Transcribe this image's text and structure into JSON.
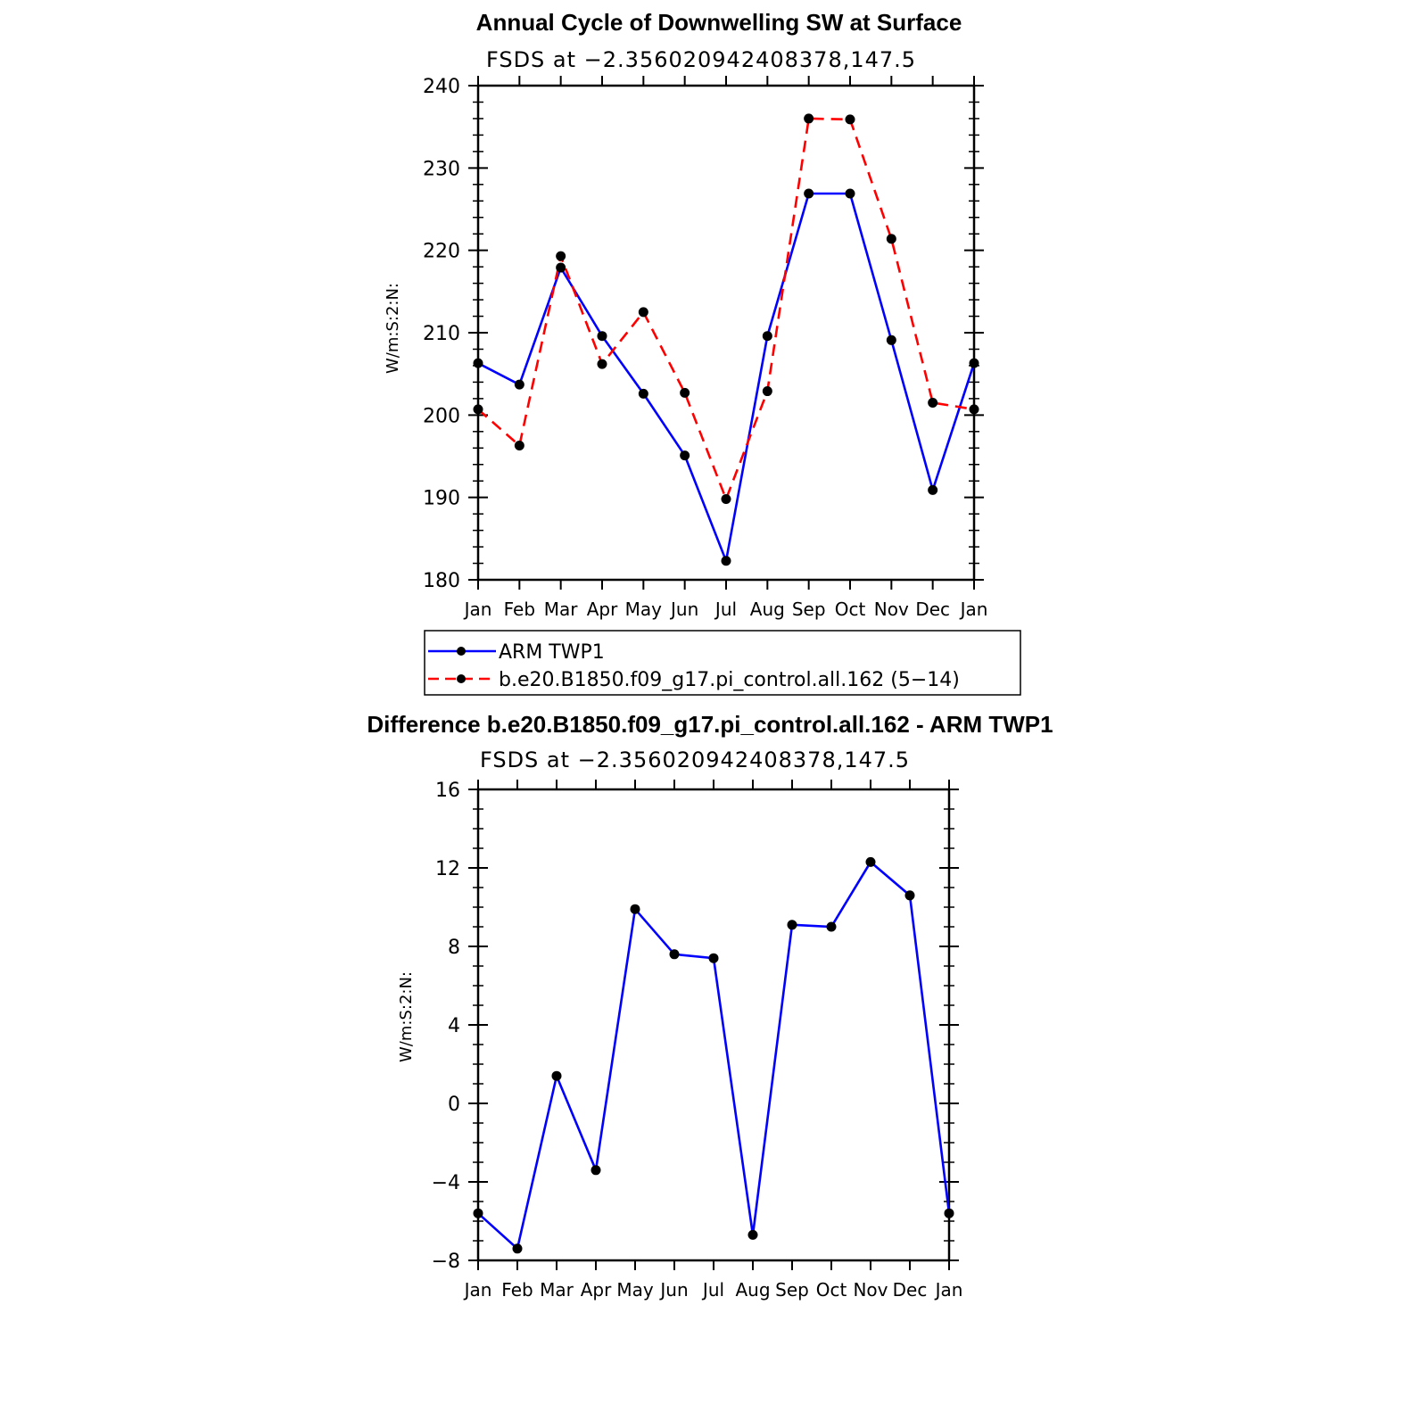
{
  "chart_data": [
    {
      "type": "line",
      "title": "Annual Cycle of Downwelling SW at Surface",
      "subtitle": "FSDS at −2.356020942408378,147.5",
      "ylabel": "W/m:S:2:N:",
      "xlabel": "",
      "categories": [
        "Jan",
        "Feb",
        "Mar",
        "Apr",
        "May",
        "Jun",
        "Jul",
        "Aug",
        "Sep",
        "Oct",
        "Nov",
        "Dec",
        "Jan"
      ],
      "ylim": [
        180,
        240
      ],
      "yticks": [
        180,
        190,
        200,
        210,
        220,
        230,
        240
      ],
      "ytick_labels": [
        "180",
        "190",
        "200",
        "210",
        "220",
        "230",
        "240"
      ],
      "series": [
        {
          "name": "ARM TWP1",
          "color": "#0000ff",
          "dash": "solid",
          "values": [
            206.3,
            203.7,
            217.9,
            209.6,
            202.6,
            195.1,
            182.3,
            209.6,
            226.9,
            226.9,
            209.1,
            190.9,
            206.3
          ]
        },
        {
          "name": "b.e20.B1850.f09_g17.pi_control.all.162 (5−14)",
          "color": "#ff0000",
          "dash": "dashed",
          "values": [
            200.7,
            196.3,
            219.3,
            206.2,
            212.5,
            202.7,
            189.8,
            202.9,
            236.0,
            235.9,
            221.4,
            201.5,
            200.7
          ]
        }
      ],
      "legend": "below"
    },
    {
      "type": "line",
      "title": "Difference b.e20.B1850.f09_g17.pi_control.all.162 - ARM TWP1",
      "subtitle": "FSDS at −2.356020942408378,147.5",
      "ylabel": "W/m:S:2:N:",
      "xlabel": "",
      "categories": [
        "Jan",
        "Feb",
        "Mar",
        "Apr",
        "May",
        "Jun",
        "Jul",
        "Aug",
        "Sep",
        "Oct",
        "Nov",
        "Dec",
        "Jan"
      ],
      "ylim": [
        -8,
        16
      ],
      "yticks": [
        -8,
        -4,
        0,
        4,
        8,
        12,
        16
      ],
      "ytick_labels": [
        "−8",
        "−4",
        "0",
        "4",
        "8",
        "12",
        "16"
      ],
      "series": [
        {
          "color": "#0000ff",
          "dash": "solid",
          "values": [
            -5.6,
            -7.4,
            1.4,
            -3.4,
            9.9,
            7.6,
            7.4,
            -6.7,
            9.1,
            9.0,
            12.3,
            10.6,
            -5.6
          ]
        }
      ]
    }
  ]
}
